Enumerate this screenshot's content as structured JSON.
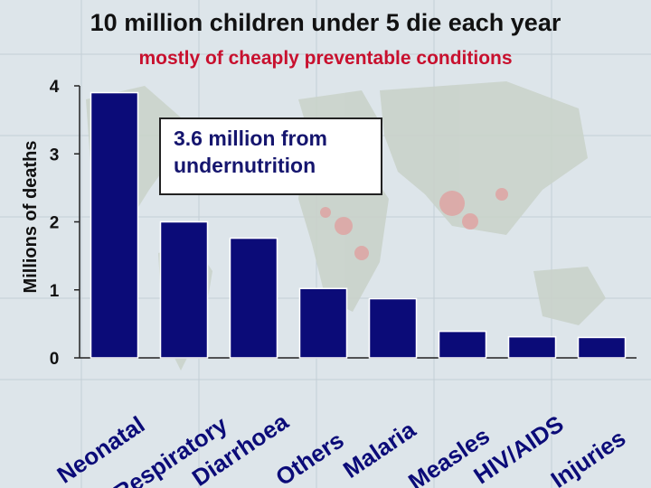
{
  "chart_data": {
    "type": "bar",
    "title": "10 million children under 5 die each year",
    "subtitle": "mostly of cheaply preventable conditions",
    "ylabel": "Millions of deaths",
    "xlabel": "",
    "ylim": [
      0,
      4
    ],
    "yticks": [
      "0",
      "1",
      "2",
      "3",
      "4"
    ],
    "grid": false,
    "categories": [
      "Neonatal",
      "Respiratory",
      "Diarrhoea",
      "Others",
      "Malaria",
      "Measles",
      "HIV/AIDS",
      "Injuries"
    ],
    "values": [
      3.9,
      2.0,
      1.76,
      1.02,
      0.87,
      0.39,
      0.31,
      0.3
    ],
    "bar_color": "#0b0b78",
    "annotation": "3.6 million from undernutrition"
  },
  "colors": {
    "title": "#111111",
    "subtitle": "#c8102e",
    "bar": "#0b0b78",
    "background": "#dfe6ea"
  }
}
